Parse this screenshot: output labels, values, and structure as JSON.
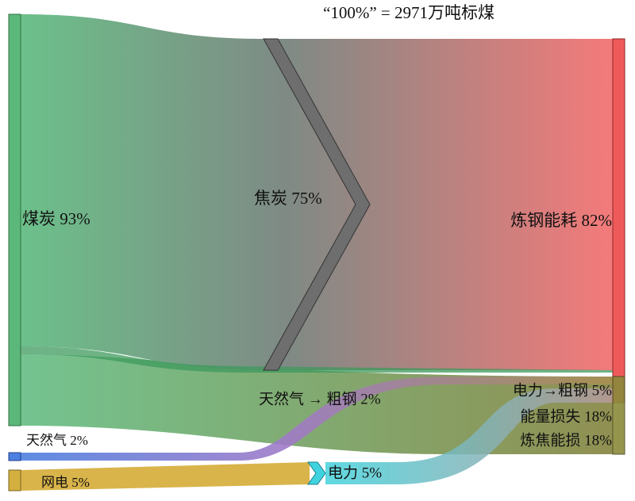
{
  "title": "“100%” = 2971万吨标煤",
  "nodes": [
    {
      "label": "煤炭  93%"
    },
    {
      "label": "焦炭  75%"
    },
    {
      "label": "炼钢能耗  82%"
    },
    {
      "label": "天然气 → 粗钢 2%"
    },
    {
      "label": "电力→粗钢 5%"
    },
    {
      "label": "能量损失 18%"
    },
    {
      "label": "炼焦能损 18%"
    },
    {
      "label": "天然气  2%"
    },
    {
      "label": "网电  5%"
    },
    {
      "label": "电力  5%"
    }
  ]
}
